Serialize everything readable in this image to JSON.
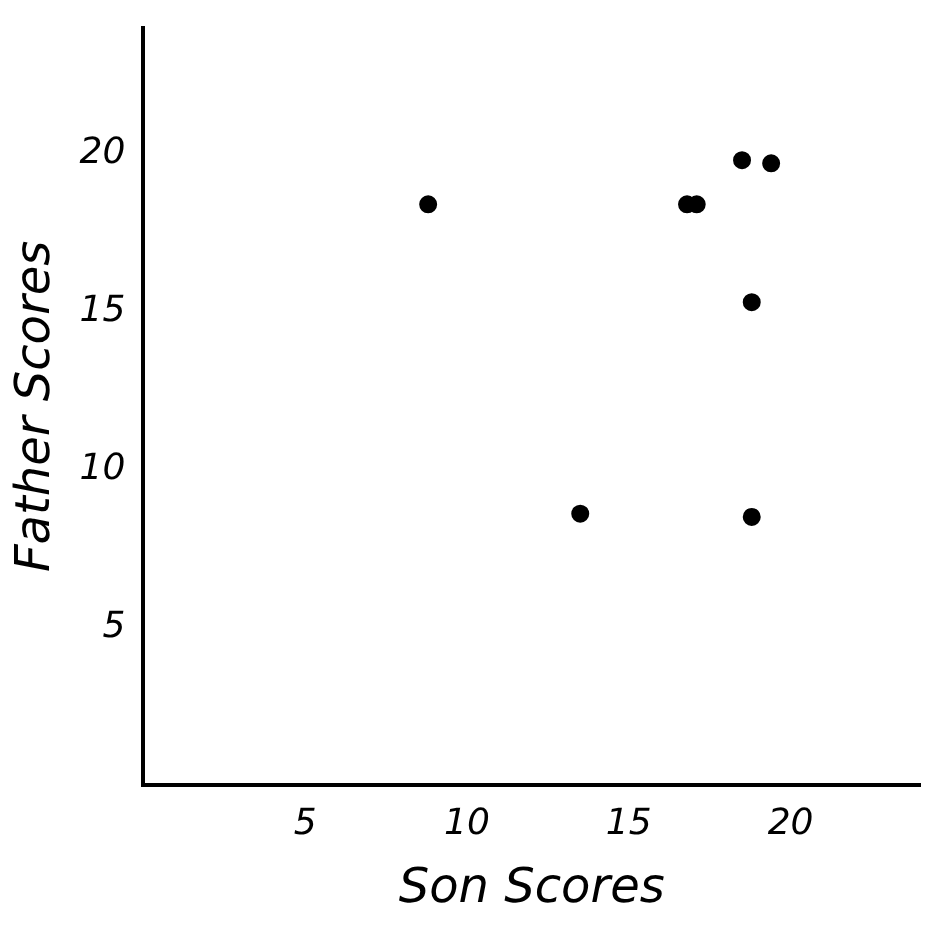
{
  "chart_data": {
    "type": "scatter",
    "xlabel": "Son Scores",
    "ylabel": "Father Scores",
    "x": [
      8.8,
      13.5,
      16.8,
      17.1,
      18.5,
      19.4,
      18.8,
      18.8
    ],
    "series": [
      {
        "color": "#000000",
        "values": [
          18.4,
          8.6,
          18.4,
          18.4,
          19.8,
          19.7,
          15.3,
          8.5
        ]
      }
    ],
    "xlim": [
      0,
      24
    ],
    "ylim": [
      0,
      24
    ],
    "xticks": [
      5,
      10,
      15,
      20
    ],
    "yticks": [
      5,
      10,
      15,
      20
    ],
    "grid": false,
    "legend": false,
    "marker": "circle"
  }
}
